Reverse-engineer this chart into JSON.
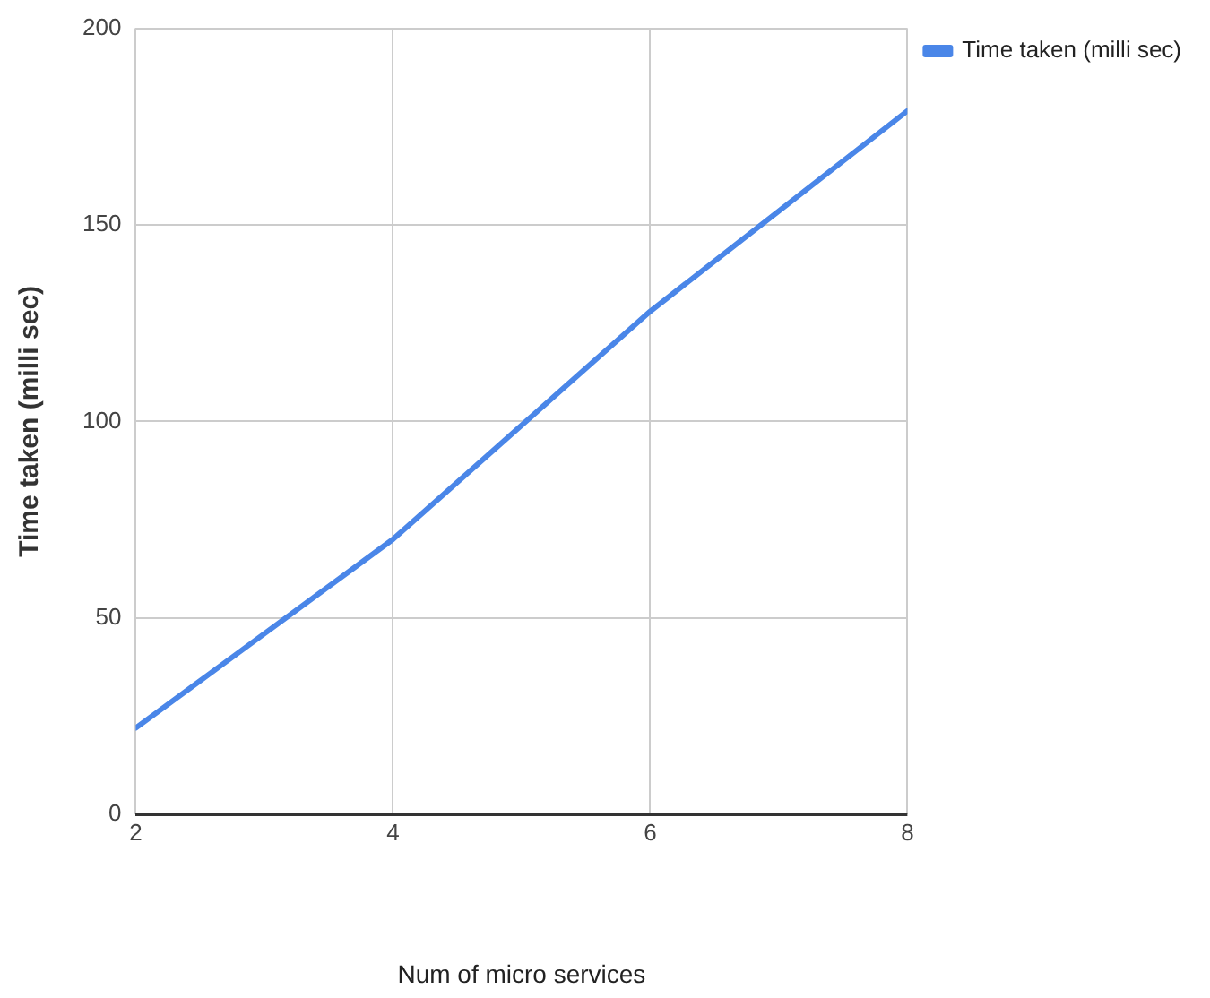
{
  "chart_data": {
    "type": "line",
    "xlabel": "Num of micro services",
    "ylabel": "Time taken (milli sec)",
    "x": [
      2,
      4,
      6,
      8
    ],
    "series": [
      {
        "name": "Time taken (milli sec)",
        "color": "#4a86e8",
        "values": [
          22,
          70,
          128,
          179
        ]
      }
    ],
    "xlim": [
      2,
      8
    ],
    "xticks": [
      2,
      4,
      6,
      8
    ],
    "ylim": [
      0,
      200
    ],
    "yticks": [
      0,
      50,
      100,
      150,
      200
    ],
    "grid": true,
    "legend": "top right",
    "marker": "none",
    "line_style": "solid"
  }
}
